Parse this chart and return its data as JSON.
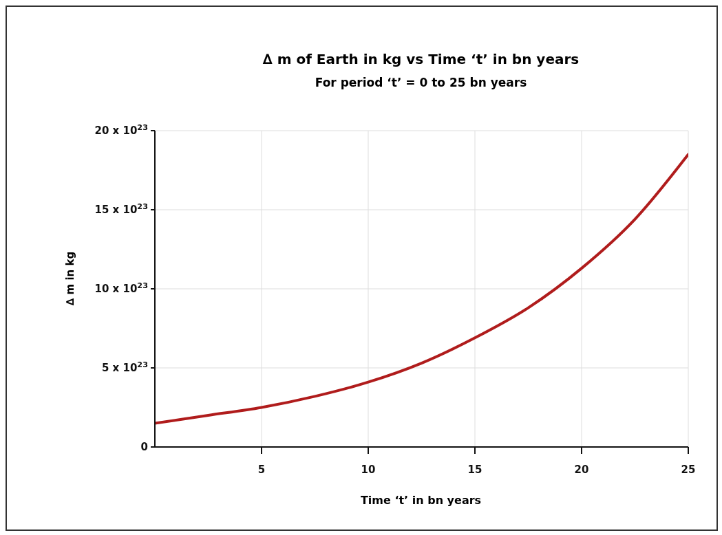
{
  "chart_data": {
    "type": "line",
    "title": "∆ m of Earth in kg  vs Time ‘t’ in bn years",
    "subtitle": "For period ‘t’ = 0 to 25 bn years",
    "xlabel": "Time ‘t’ in bn years",
    "ylabel": "∆ m in kg",
    "x": [
      0,
      2.5,
      5,
      7.5,
      10,
      12.5,
      15,
      17.5,
      20,
      22.5,
      25
    ],
    "series": [
      {
        "color": "#b01c1c",
        "values": [
          1.5e+23,
          2e+23,
          2.5e+23,
          3.2e+23,
          4.1e+23,
          5.3e+23,
          6.9e+23,
          8.8e+23,
          1.13e+24,
          1.44e+24,
          1.85e+24
        ]
      }
    ],
    "xlim": [
      0,
      25
    ],
    "xticks": [
      5,
      10,
      15,
      20,
      25
    ],
    "ylim": [
      0,
      2e+24
    ],
    "yticks": [
      {
        "value": 0,
        "label": "0"
      },
      {
        "value": 5e+23,
        "label": "5 x 10$^{23}$"
      },
      {
        "value": 1e+24,
        "label": "10 x 10$^{23}$"
      },
      {
        "value": 1.5e+24,
        "label": "15 x 10$^{23}$"
      },
      {
        "value": 2e+24,
        "label": "20 x 10$^{23}$"
      }
    ],
    "grid": true
  }
}
